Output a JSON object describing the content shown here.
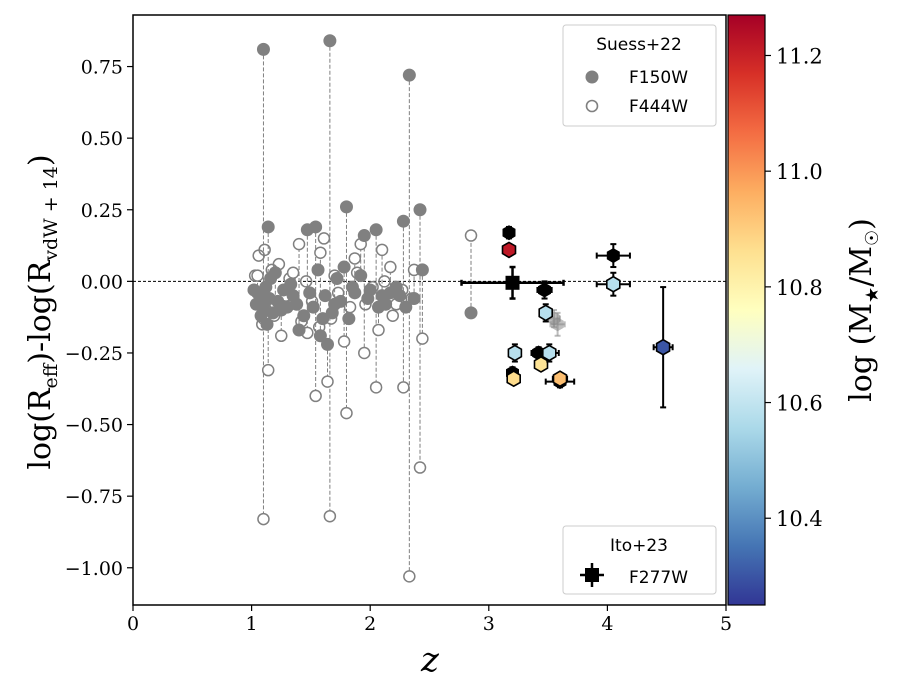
{
  "chart_data": {
    "type": "scatter",
    "xlabel": "z",
    "ylabel": "log(R_eff)-log(R_vdW+14)",
    "xlim": [
      0,
      5
    ],
    "ylim": [
      -1.13,
      0.93
    ],
    "xticks": [
      "0",
      "1",
      "2",
      "3",
      "4",
      "5"
    ],
    "yticks": [
      "0.75",
      "0.50",
      "0.25",
      "0.00",
      "-0.25",
      "-0.50",
      "-0.75",
      "-1.00"
    ],
    "reference_line_y": 0.0,
    "colorbar": {
      "label": "log (M★/M☉)",
      "range": [
        10.25,
        11.27
      ],
      "ticks": [
        "10.4",
        "10.6",
        "10.8",
        "11.0",
        "11.2"
      ],
      "colormap": "RdYlBu_r"
    },
    "legend_suess": {
      "title": "Suess+22",
      "entries": [
        "F150W",
        "F444W"
      ],
      "position": "upper-right"
    },
    "legend_ito": {
      "title": "Ito+23",
      "entries": [
        "F277W"
      ],
      "position": "lower-right"
    },
    "colors": {
      "suess": "#808080",
      "axis": "#000000",
      "black_point": "#000000"
    },
    "suess_pairs": [
      {
        "z": 1.1,
        "f150": 0.81,
        "f444": -0.83
      },
      {
        "z": 1.66,
        "f150": 0.84,
        "f444": -0.82
      },
      {
        "z": 2.33,
        "f150": 0.72,
        "f444": -1.03
      },
      {
        "z": 2.42,
        "f150": 0.25,
        "f444": -0.65
      },
      {
        "z": 1.8,
        "f150": 0.26,
        "f444": -0.46
      },
      {
        "z": 1.54,
        "f150": 0.19,
        "f444": -0.4
      },
      {
        "z": 2.28,
        "f150": 0.21,
        "f444": -0.37
      },
      {
        "z": 1.14,
        "f150": 0.19,
        "f444": -0.31
      },
      {
        "z": 2.05,
        "f150": 0.18,
        "f444": -0.37
      },
      {
        "z": 1.47,
        "f150": 0.18,
        "f444": -0.18
      },
      {
        "z": 1.95,
        "f150": 0.16,
        "f444": -0.25
      },
      {
        "z": 2.85,
        "f150": -0.11,
        "f444": 0.16
      },
      {
        "z": 1.05,
        "f150": -0.04,
        "f444": 0.02
      },
      {
        "z": 1.1,
        "f150": -0.09,
        "f444": -0.13
      },
      {
        "z": 1.2,
        "f150": 0.03,
        "f444": -0.08
      },
      {
        "z": 1.25,
        "f150": -0.1,
        "f444": -0.19
      },
      {
        "z": 1.35,
        "f150": -0.05,
        "f444": 0.03
      },
      {
        "z": 1.4,
        "f150": -0.17,
        "f444": 0.13
      },
      {
        "z": 1.58,
        "f150": -0.19,
        "f444": 0.1
      },
      {
        "z": 1.64,
        "f150": -0.22,
        "f444": -0.35
      },
      {
        "z": 1.7,
        "f150": -0.08,
        "f444": 0.02
      },
      {
        "z": 1.78,
        "f150": 0.05,
        "f444": -0.21
      },
      {
        "z": 1.87,
        "f150": -0.04,
        "f444": 0.08
      },
      {
        "z": 1.92,
        "f150": 0.02,
        "f444": 0.13
      },
      {
        "z": 2.07,
        "f150": -0.09,
        "f444": -0.17
      },
      {
        "z": 2.1,
        "f150": -0.05,
        "f444": 0.11
      },
      {
        "z": 2.17,
        "f150": -0.04,
        "f444": 0.05
      },
      {
        "z": 2.22,
        "f150": -0.02,
        "f444": -0.08
      },
      {
        "z": 2.37,
        "f150": -0.06,
        "f444": 0.04
      },
      {
        "z": 2.44,
        "f150": 0.04,
        "f444": -0.2
      }
    ],
    "suess_extra_f150": [
      {
        "z": 1.02,
        "y": -0.03
      },
      {
        "z": 1.04,
        "y": -0.08
      },
      {
        "z": 1.07,
        "y": -0.05
      },
      {
        "z": 1.08,
        "y": -0.12
      },
      {
        "z": 1.12,
        "y": -0.02
      },
      {
        "z": 1.13,
        "y": -0.15
      },
      {
        "z": 1.15,
        "y": -0.06
      },
      {
        "z": 1.16,
        "y": 0.01
      },
      {
        "z": 1.18,
        "y": -0.11
      },
      {
        "z": 1.22,
        "y": -0.07
      },
      {
        "z": 1.27,
        "y": -0.03
      },
      {
        "z": 1.3,
        "y": -0.09
      },
      {
        "z": 1.33,
        "y": -0.01
      },
      {
        "z": 1.38,
        "y": -0.08
      },
      {
        "z": 1.44,
        "y": -0.12
      },
      {
        "z": 1.49,
        "y": -0.04
      },
      {
        "z": 1.52,
        "y": -0.09
      },
      {
        "z": 1.56,
        "y": 0.04
      },
      {
        "z": 1.6,
        "y": -0.13
      },
      {
        "z": 1.62,
        "y": -0.05
      },
      {
        "z": 1.68,
        "y": -0.11
      },
      {
        "z": 1.72,
        "y": 0.01
      },
      {
        "z": 1.75,
        "y": -0.07
      },
      {
        "z": 1.82,
        "y": -0.13
      },
      {
        "z": 1.85,
        "y": -0.02
      },
      {
        "z": 1.98,
        "y": -0.06
      },
      {
        "z": 2.0,
        "y": -0.03
      },
      {
        "z": 2.13,
        "y": -0.08
      },
      {
        "z": 2.25,
        "y": -0.05
      },
      {
        "z": 2.3,
        "y": -0.09
      }
    ],
    "suess_extra_f444": [
      {
        "z": 1.03,
        "y": 0.02
      },
      {
        "z": 1.06,
        "y": 0.09
      },
      {
        "z": 1.09,
        "y": -0.15
      },
      {
        "z": 1.11,
        "y": 0.11
      },
      {
        "z": 1.17,
        "y": 0.04
      },
      {
        "z": 1.19,
        "y": -0.12
      },
      {
        "z": 1.23,
        "y": 0.06
      },
      {
        "z": 1.29,
        "y": -0.05
      },
      {
        "z": 1.32,
        "y": 0.01
      },
      {
        "z": 1.42,
        "y": -0.14
      },
      {
        "z": 1.46,
        "y": 0.0
      },
      {
        "z": 1.51,
        "y": -0.07
      },
      {
        "z": 1.57,
        "y": -0.16
      },
      {
        "z": 1.61,
        "y": 0.15
      },
      {
        "z": 1.67,
        "y": -0.13
      },
      {
        "z": 1.73,
        "y": -0.04
      },
      {
        "z": 1.83,
        "y": -0.09
      },
      {
        "z": 1.89,
        "y": 0.03
      },
      {
        "z": 1.96,
        "y": -0.08
      },
      {
        "z": 2.02,
        "y": -0.02
      },
      {
        "z": 2.12,
        "y": 0.0
      },
      {
        "z": 2.19,
        "y": -0.12
      },
      {
        "z": 2.27,
        "y": -0.03
      },
      {
        "z": 2.35,
        "y": -0.06
      }
    ],
    "ito_points": [
      {
        "z": 3.17,
        "y": 0.17,
        "zerr": 0.04,
        "yerr": 0.02,
        "mass": null
      },
      {
        "z": 3.17,
        "y": 0.11,
        "zerr": 0.03,
        "yerr": 0.02,
        "mass": 11.22
      },
      {
        "z": 3.2,
        "y": -0.32,
        "zerr": 0.03,
        "yerr": 0.02,
        "mass": null
      },
      {
        "z": 3.21,
        "y": -0.34,
        "zerr": 0.03,
        "yerr": 0.02,
        "mass": 10.87
      },
      {
        "z": 3.22,
        "y": -0.25,
        "zerr": 0.04,
        "yerr": 0.03,
        "mass": 10.58
      },
      {
        "z": 3.42,
        "y": -0.25,
        "zerr": 0.06,
        "yerr": 0.02,
        "mass": null
      },
      {
        "z": 3.44,
        "y": -0.29,
        "zerr": 0.04,
        "yerr": 0.02,
        "mass": 10.85
      },
      {
        "z": 3.47,
        "y": -0.03,
        "zerr": 0.06,
        "yerr": 0.03,
        "mass": null
      },
      {
        "z": 3.48,
        "y": -0.11,
        "zerr": 0.04,
        "yerr": 0.03,
        "mass": 10.58
      },
      {
        "z": 3.51,
        "y": -0.25,
        "zerr": 0.08,
        "yerr": 0.03,
        "mass": 10.58
      },
      {
        "z": 3.6,
        "y": -0.35,
        "zerr": 0.12,
        "yerr": 0.02,
        "mass": null
      },
      {
        "z": 3.6,
        "y": -0.34,
        "zerr": 0.06,
        "yerr": 0.02,
        "mass": 10.93
      },
      {
        "z": 4.05,
        "y": 0.09,
        "zerr": 0.14,
        "yerr": 0.04,
        "mass": null
      },
      {
        "z": 4.05,
        "y": -0.01,
        "zerr": 0.14,
        "yerr": 0.04,
        "mass": 10.58
      },
      {
        "z": 4.47,
        "y": -0.23,
        "zerr": 0.08,
        "yerr": 0.21,
        "mass": 10.3
      }
    ],
    "ito_faded": [
      {
        "z": 3.58,
        "y": -0.15,
        "zerr": 0.06,
        "yerr": 0.04
      },
      {
        "z": 3.55,
        "y": -0.13,
        "zerr": 0.05,
        "yerr": 0.03
      }
    ],
    "ito_stack": {
      "z": 3.2,
      "y": -0.005,
      "zerr": 0.43,
      "yerr": 0.055
    }
  }
}
